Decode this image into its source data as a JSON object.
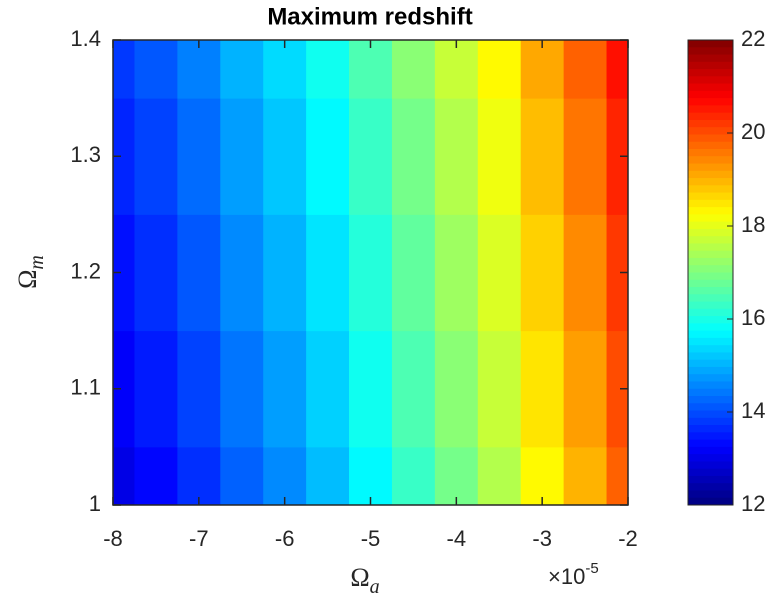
{
  "chart_data": {
    "type": "heatmap",
    "title": "Maximum redshift",
    "xlabel": {
      "symbol": "Ω",
      "subscript": "a"
    },
    "ylabel": {
      "symbol": "Ω",
      "subscript": "m"
    },
    "x_multiplier": {
      "base": "×10",
      "exponent": "-5"
    },
    "x": [
      -8,
      -7.5,
      -7,
      -6.5,
      -6,
      -5.5,
      -5,
      -4.5,
      -4,
      -3.5,
      -3,
      -2.5,
      -2
    ],
    "y": [
      1.0,
      1.1,
      1.2,
      1.3,
      1.4
    ],
    "z": [
      [
        13.0,
        13.3,
        13.7,
        14.2,
        14.6,
        15.1,
        15.7,
        16.3,
        16.9,
        17.5,
        18.3,
        19.0,
        19.8
      ],
      [
        13.2,
        13.5,
        13.9,
        14.4,
        14.8,
        15.3,
        15.9,
        16.5,
        17.1,
        17.7,
        18.5,
        19.2,
        20.0
      ],
      [
        13.4,
        13.7,
        14.1,
        14.6,
        15.0,
        15.5,
        16.1,
        16.7,
        17.3,
        17.9,
        18.7,
        19.4,
        20.2
      ],
      [
        13.6,
        13.9,
        14.3,
        14.8,
        15.2,
        15.7,
        16.3,
        16.9,
        17.5,
        18.1,
        18.9,
        19.6,
        20.4
      ],
      [
        13.8,
        14.1,
        14.5,
        15.0,
        15.4,
        15.9,
        16.5,
        17.1,
        17.7,
        18.3,
        19.1,
        19.8,
        20.6
      ]
    ],
    "xlim": [
      -8,
      -2
    ],
    "xticks": [
      -8,
      -7,
      -6,
      -5,
      -4,
      -3,
      -2
    ],
    "ylim": [
      1,
      1.4
    ],
    "yticks": [
      1,
      1.1,
      1.2,
      1.3,
      1.4
    ],
    "colormap": "jet",
    "clim": [
      12,
      22
    ],
    "cticks": [
      12,
      14,
      16,
      18,
      20,
      22
    ]
  }
}
